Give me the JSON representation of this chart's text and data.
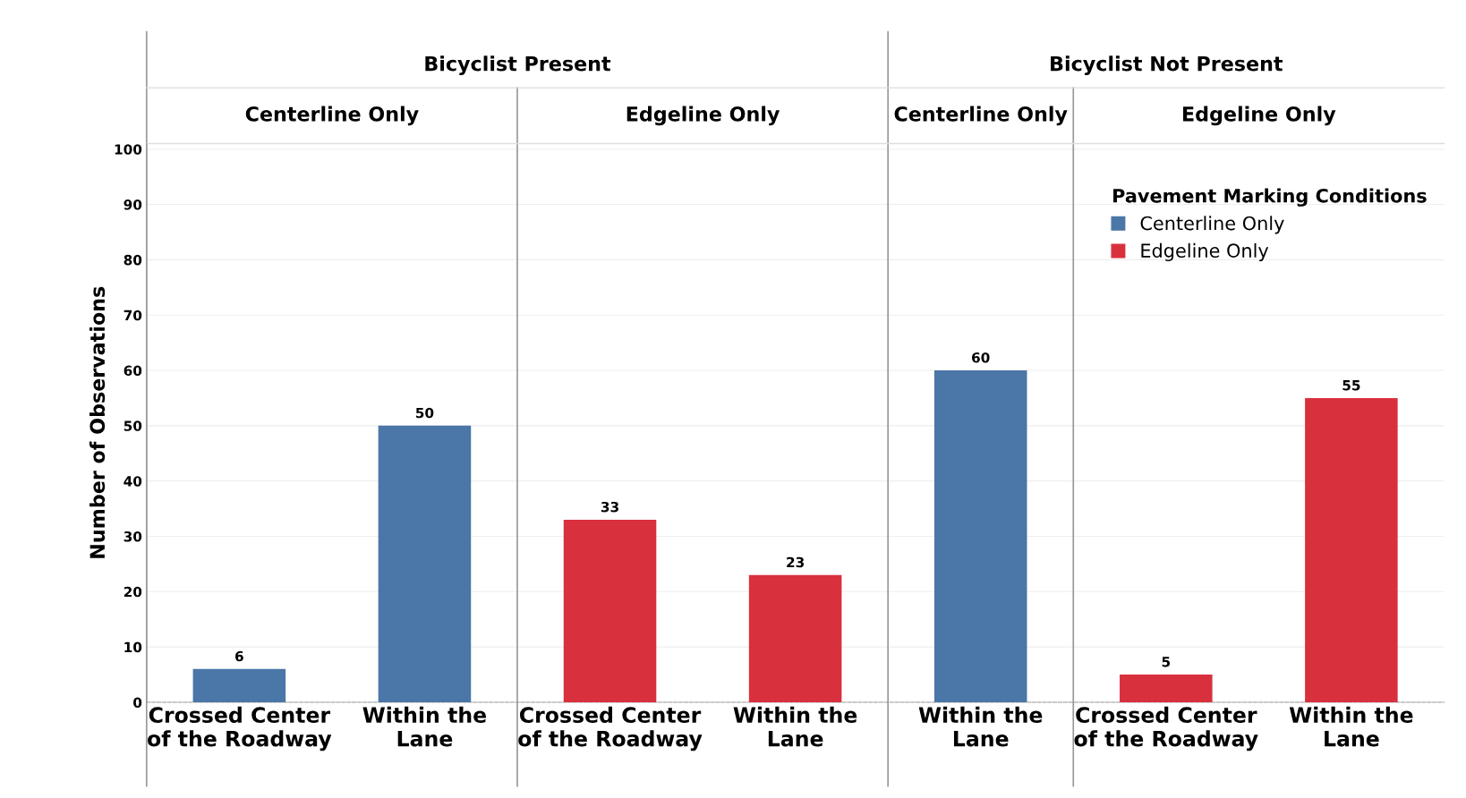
{
  "chart_data": {
    "type": "bar",
    "ylabel": "Number of Observations",
    "legend_title": "Pavement Marking Conditions",
    "categories": [
      "Crossed Center\nof the Roadway",
      "Within the\nLane",
      "Crossed Center\nof the Roadway",
      "Within the\nLane",
      "Within the\nLane",
      "Crossed Center\nof the Roadway",
      "Within the\nLane"
    ],
    "series": [
      {
        "name": "Centerline Only",
        "color": "#4a76a8",
        "values": [
          6,
          50,
          null,
          null,
          60,
          null,
          null
        ]
      },
      {
        "name": "Edgeline Only",
        "color": "#d9303e",
        "values": [
          null,
          null,
          33,
          23,
          null,
          5,
          55
        ]
      }
    ],
    "ylim": [
      0,
      101
    ],
    "yticks": [
      0,
      10,
      20,
      30,
      40,
      50,
      60,
      70,
      80,
      90,
      100
    ],
    "grid": "y",
    "legend": "top right",
    "data_labels": true,
    "annotations": [
      "Bicyclist Present",
      "Bicyclist Not Present",
      "Centerline Only",
      "Edgeline Only",
      "Centerline Only",
      "Edgeline Only"
    ]
  }
}
